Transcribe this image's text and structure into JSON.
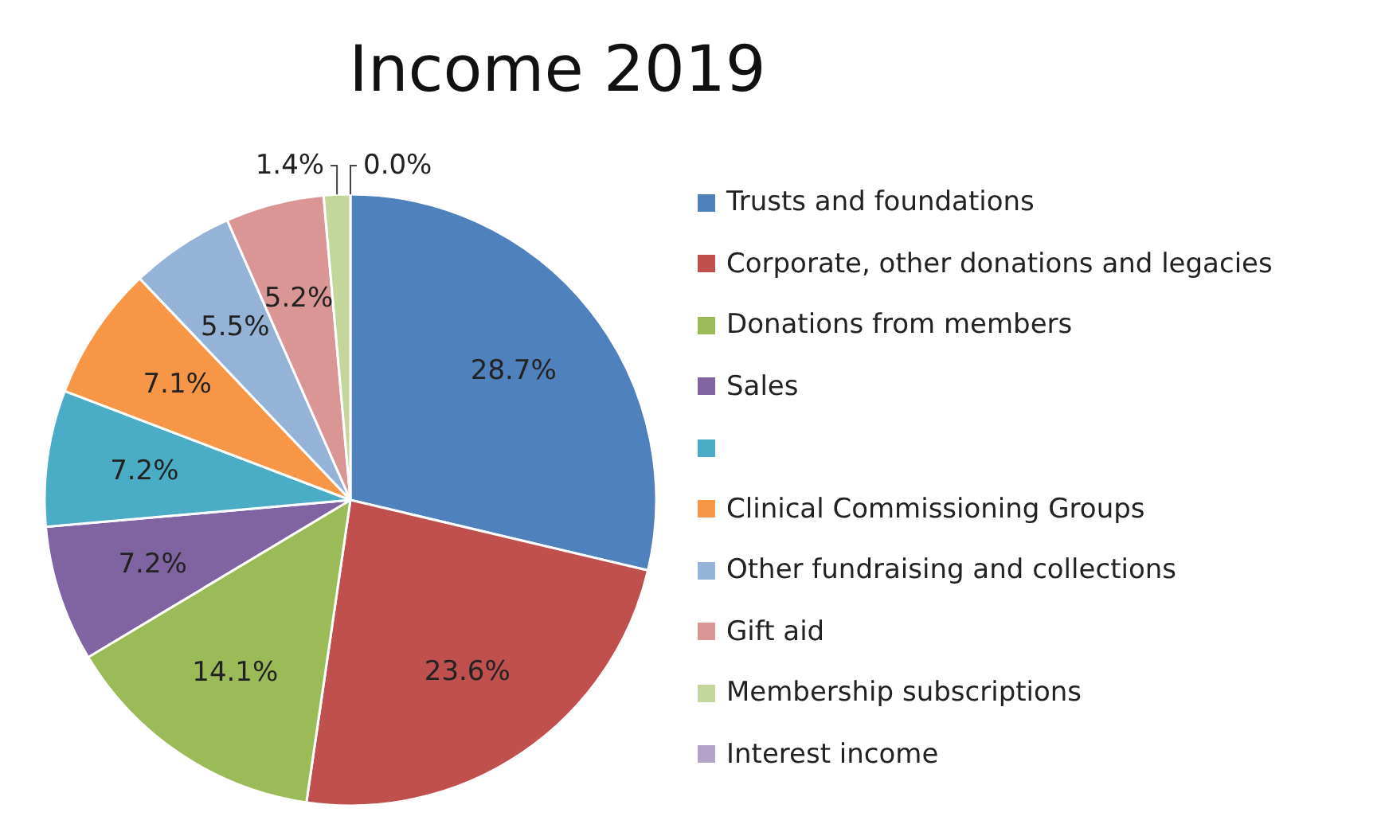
{
  "chart_data": {
    "type": "pie",
    "title": "Income 2019",
    "categories": [
      "Trusts and foundations",
      "Corporate, other donations and legacies",
      "Donations from members",
      "Sales",
      null,
      "Clinical Commissioning Groups",
      "Other fundraising and collections",
      "Gift aid",
      "Membership subscriptions",
      "Interest income"
    ],
    "values": [
      28.7,
      23.6,
      14.1,
      7.2,
      7.2,
      7.1,
      5.5,
      5.2,
      1.4,
      0.0
    ],
    "value_labels": [
      "28.7%",
      "23.6%",
      "14.1%",
      "7.2%",
      "7.2%",
      "7.1%",
      "5.5%",
      "5.2%",
      "1.4%",
      "0.0%"
    ],
    "colors": [
      "#4f81bd",
      "#c0504d",
      "#9bbb59",
      "#8064a2",
      "#4bacc6",
      "#f79646",
      "#95b3d7",
      "#d99694",
      "#c3d69b",
      "#b3a2c7"
    ],
    "legend": "right"
  }
}
